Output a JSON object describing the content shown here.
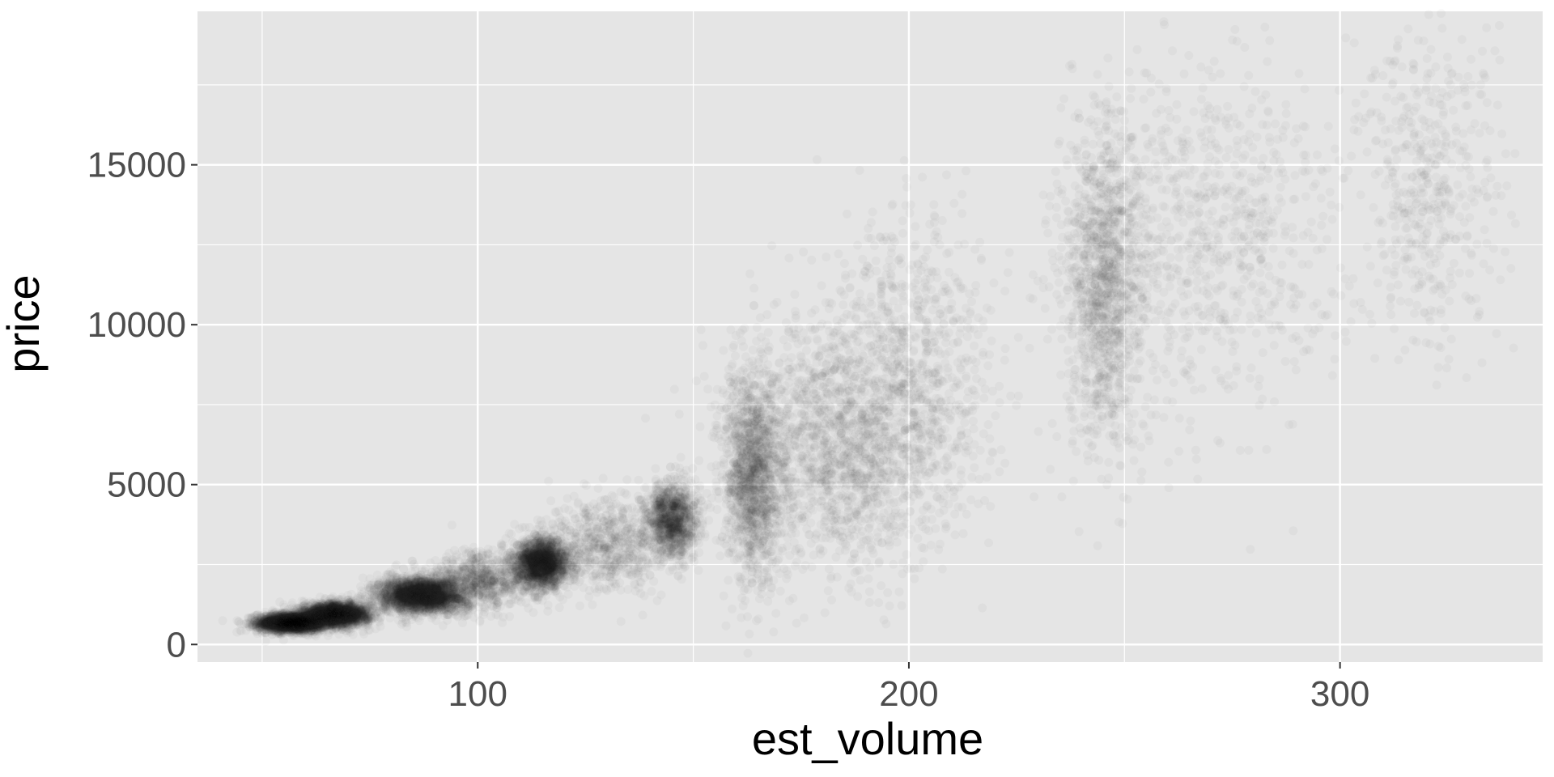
{
  "chart_data": {
    "type": "scatter",
    "xlabel": "est_volume",
    "ylabel": "price",
    "xlim": [
      35,
      347
    ],
    "ylim": [
      -550,
      19800
    ],
    "x_ticks": [
      100,
      200,
      300
    ],
    "x_minor_ticks": [
      50,
      150,
      250
    ],
    "y_ticks": [
      0,
      5000,
      10000,
      15000
    ],
    "y_minor_ticks": [
      2500,
      7500,
      12500,
      17500
    ],
    "grid": true,
    "legend": "none",
    "colors": {
      "panel": "#e5e5e5",
      "grid": "#ffffff",
      "point": "#1a1a1a"
    },
    "point_alpha": 0.03,
    "clusters": [
      {
        "x": 57,
        "y": 680,
        "sx": 4,
        "sy": 140,
        "n": 2600,
        "slope": 0
      },
      {
        "x": 67,
        "y": 940,
        "sx": 4,
        "sy": 180,
        "n": 2300,
        "slope": 0
      },
      {
        "x": 87,
        "y": 1550,
        "sx": 5,
        "sy": 280,
        "n": 2600,
        "slope": 0
      },
      {
        "x": 101,
        "y": 2000,
        "sx": 6,
        "sy": 450,
        "n": 800,
        "slope": 0
      },
      {
        "x": 115,
        "y": 2550,
        "sx": 3,
        "sy": 380,
        "n": 2000,
        "slope": 0
      },
      {
        "x": 130,
        "y": 3100,
        "sx": 7,
        "sy": 700,
        "n": 700,
        "slope": 0
      },
      {
        "x": 145,
        "y": 3900,
        "sx": 3,
        "sy": 600,
        "n": 1200,
        "slope": 0
      },
      {
        "x": 164,
        "y": 5200,
        "sx": 3.5,
        "sy": 1600,
        "n": 1500,
        "slope": 0
      },
      {
        "x": 185,
        "y": 6300,
        "sx": 13,
        "sy": 1900,
        "n": 1900,
        "slope": 0
      },
      {
        "x": 200,
        "y": 9000,
        "sx": 10,
        "sy": 2300,
        "n": 700,
        "slope": 0
      },
      {
        "x": 245,
        "y": 11200,
        "sx": 4.5,
        "sy": 2600,
        "n": 1300,
        "slope": 0
      },
      {
        "x": 268,
        "y": 12500,
        "sx": 15,
        "sy": 2700,
        "n": 900,
        "slope": 0
      },
      {
        "x": 320,
        "y": 14200,
        "sx": 8,
        "sy": 2600,
        "n": 500,
        "slope": 0
      }
    ]
  }
}
